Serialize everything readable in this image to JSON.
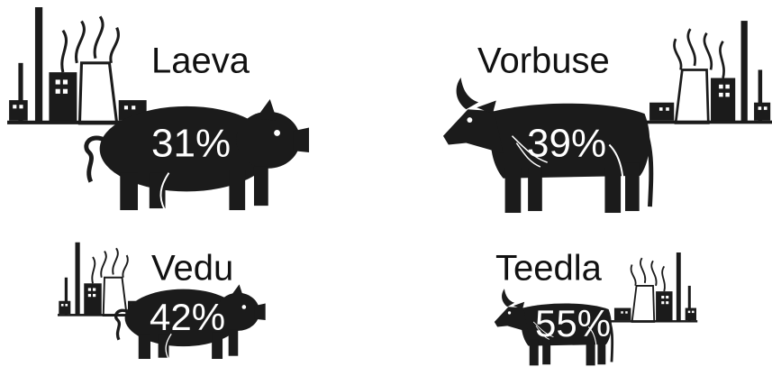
{
  "chart_data": {
    "type": "pictogram",
    "categories": [
      "Laeva",
      "Vorbuse",
      "Vedu",
      "Teedla"
    ],
    "values": [
      31,
      39,
      42,
      55
    ],
    "value_labels": [
      "31%",
      "39%",
      "42%",
      "55%"
    ]
  }
}
